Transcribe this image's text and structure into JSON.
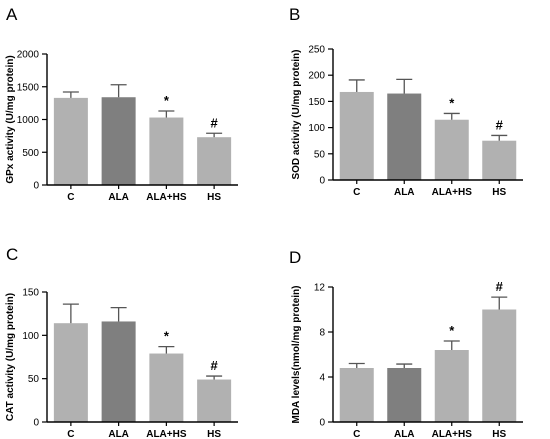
{
  "chart_data": [
    {
      "panel": "A",
      "type": "bar",
      "categories": [
        "C",
        "ALA",
        "ALA+HS",
        "HS"
      ],
      "values": [
        1330,
        1340,
        1030,
        730
      ],
      "errors": [
        90,
        190,
        100,
        60
      ],
      "significance": [
        "",
        "",
        "*",
        "#"
      ],
      "ylabel": "GPx activity (U/mg protein)",
      "ylim": [
        0,
        2000
      ],
      "yticks": [
        0,
        500,
        1000,
        1500,
        2000
      ],
      "tick_labels": [
        "0",
        "500",
        "1000",
        "1500",
        "2000"
      ]
    },
    {
      "panel": "B",
      "type": "bar",
      "categories": [
        "C",
        "ALA",
        "ALA+HS",
        "HS"
      ],
      "values": [
        168,
        165,
        115,
        75
      ],
      "errors": [
        23,
        27,
        12,
        10
      ],
      "significance": [
        "",
        "",
        "*",
        "#"
      ],
      "ylabel": "SOD activity (U/mg protein)",
      "ylim": [
        0,
        250
      ],
      "yticks": [
        0,
        50,
        100,
        150,
        200,
        250
      ],
      "tick_labels": [
        "0",
        "50",
        "100",
        "150",
        "200",
        "250"
      ]
    },
    {
      "panel": "C",
      "type": "bar",
      "categories": [
        "C",
        "ALA",
        "ALA+HS",
        "HS"
      ],
      "values": [
        114,
        116,
        79,
        49
      ],
      "errors": [
        22,
        16,
        8,
        4
      ],
      "significance": [
        "",
        "",
        "*",
        "#"
      ],
      "ylabel": "CAT activity (U/mg protein)",
      "ylim": [
        0,
        150
      ],
      "yticks": [
        0,
        50,
        100,
        150
      ],
      "tick_labels": [
        "0",
        "50",
        "100",
        "150"
      ]
    },
    {
      "panel": "D",
      "type": "bar",
      "categories": [
        "C",
        "ALA",
        "ALA+HS",
        "HS"
      ],
      "values": [
        4.8,
        4.8,
        6.4,
        10.0
      ],
      "errors": [
        0.4,
        0.35,
        0.8,
        1.1
      ],
      "significance": [
        "",
        "",
        "*",
        "#"
      ],
      "ylabel": "MDA levels(nmol/mg protein)",
      "ylim": [
        0,
        12
      ],
      "yticks": [
        0,
        4,
        8,
        12
      ],
      "tick_labels": [
        "0",
        "4",
        "8",
        "12"
      ]
    }
  ],
  "colors": {
    "bar_light": "#b1b1b1",
    "bar_dark": "#7f7f7f",
    "error": "#555555",
    "axis": "#000000"
  }
}
